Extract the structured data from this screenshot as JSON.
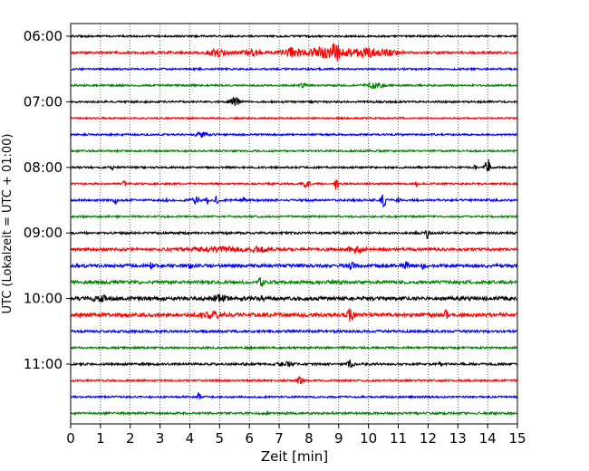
{
  "chart_data": {
    "type": "line",
    "xlabel": "Zeit  [min]",
    "ylabel": "UTC (Lokalzeit = UTC + 01:00)",
    "xlim": [
      0,
      15
    ],
    "xticks": [
      0,
      1,
      2,
      3,
      4,
      5,
      6,
      7,
      8,
      9,
      10,
      11,
      12,
      13,
      14,
      15
    ],
    "yticks": [
      "06:00",
      "07:00",
      "08:00",
      "09:00",
      "10:00",
      "11:00"
    ],
    "grid": "vertical-dotted",
    "colors": [
      "#000000",
      "#ff0000",
      "#0000ff",
      "#008000"
    ],
    "traces": [
      {
        "row": 0,
        "color": "#000000",
        "level": 1.0,
        "events": []
      },
      {
        "row": 1,
        "color": "#ff0000",
        "level": 1.3,
        "events": [
          [
            4.9,
            0.35,
            3.5
          ],
          [
            6.1,
            0.3,
            3.5
          ],
          [
            7.5,
            0.4,
            4.5
          ],
          [
            8.4,
            0.45,
            5.5
          ],
          [
            8.9,
            0.15,
            9
          ],
          [
            9.4,
            0.3,
            3.5
          ],
          [
            10.0,
            0.35,
            4.5
          ],
          [
            10.7,
            0.3,
            3
          ]
        ]
      },
      {
        "row": 2,
        "color": "#0000ff",
        "level": 1.0,
        "events": []
      },
      {
        "row": 3,
        "color": "#008000",
        "level": 1.0,
        "events": [
          [
            7.8,
            0.1,
            2
          ],
          [
            10.2,
            0.25,
            3.5
          ]
        ]
      },
      {
        "row": 4,
        "color": "#000000",
        "level": 1.0,
        "events": [
          [
            5.5,
            0.2,
            4
          ]
        ]
      },
      {
        "row": 5,
        "color": "#ff0000",
        "level": 0.9,
        "events": []
      },
      {
        "row": 6,
        "color": "#0000ff",
        "level": 1.0,
        "events": [
          [
            4.4,
            0.2,
            2.5
          ]
        ]
      },
      {
        "row": 7,
        "color": "#008000",
        "level": 1.0,
        "events": []
      },
      {
        "row": 8,
        "color": "#000000",
        "level": 1.0,
        "events": [
          [
            1.4,
            0.05,
            2
          ],
          [
            13.6,
            0.05,
            3
          ],
          [
            14.0,
            0.08,
            10
          ]
        ]
      },
      {
        "row": 9,
        "color": "#ff0000",
        "level": 1.0,
        "events": [
          [
            1.8,
            0.05,
            2.5
          ],
          [
            7.9,
            0.15,
            3
          ],
          [
            8.9,
            0.1,
            6
          ],
          [
            11.6,
            0.05,
            3
          ]
        ]
      },
      {
        "row": 10,
        "color": "#0000ff",
        "level": 1.2,
        "events": [
          [
            1.5,
            0.05,
            4
          ],
          [
            3.2,
            0.05,
            3
          ],
          [
            4.2,
            0.1,
            4
          ],
          [
            4.6,
            0.05,
            4
          ],
          [
            4.9,
            0.05,
            4
          ],
          [
            5.8,
            0.05,
            3
          ],
          [
            10.5,
            0.08,
            7
          ],
          [
            11.0,
            0.05,
            3
          ]
        ]
      },
      {
        "row": 11,
        "color": "#008000",
        "level": 1.0,
        "events": []
      },
      {
        "row": 12,
        "color": "#000000",
        "level": 1.2,
        "events": [
          [
            12.0,
            0.08,
            6
          ]
        ]
      },
      {
        "row": 13,
        "color": "#ff0000",
        "level": 1.5,
        "events": [
          [
            5.0,
            0.8,
            2.5
          ],
          [
            6.3,
            0.3,
            2
          ],
          [
            9.6,
            0.3,
            3
          ]
        ]
      },
      {
        "row": 14,
        "color": "#0000ff",
        "level": 1.8,
        "events": [
          [
            2.7,
            0.05,
            3
          ],
          [
            4.0,
            0.05,
            2.5
          ],
          [
            9.4,
            0.15,
            3
          ],
          [
            11.3,
            0.1,
            3
          ],
          [
            11.8,
            0.1,
            2.5
          ]
        ]
      },
      {
        "row": 15,
        "color": "#008000",
        "level": 1.7,
        "events": [
          [
            6.4,
            0.1,
            4
          ],
          [
            9.1,
            0.05,
            2.5
          ]
        ]
      },
      {
        "row": 16,
        "color": "#000000",
        "level": 2.0,
        "events": [
          [
            1.0,
            0.3,
            2
          ],
          [
            5.0,
            0.2,
            3
          ],
          [
            6.4,
            0.1,
            2.5
          ]
        ]
      },
      {
        "row": 17,
        "color": "#ff0000",
        "level": 2.0,
        "events": [
          [
            4.8,
            0.4,
            2.5
          ],
          [
            9.4,
            0.1,
            6
          ],
          [
            12.6,
            0.05,
            6.5
          ]
        ]
      },
      {
        "row": 18,
        "color": "#0000ff",
        "level": 1.3,
        "events": []
      },
      {
        "row": 19,
        "color": "#008000",
        "level": 1.1,
        "events": []
      },
      {
        "row": 20,
        "color": "#000000",
        "level": 1.2,
        "events": [
          [
            7.2,
            0.2,
            2.5
          ],
          [
            9.4,
            0.1,
            4
          ],
          [
            12.4,
            0.05,
            3
          ]
        ]
      },
      {
        "row": 21,
        "color": "#ff0000",
        "level": 1.0,
        "events": [
          [
            7.7,
            0.1,
            5
          ]
        ]
      },
      {
        "row": 22,
        "color": "#0000ff",
        "level": 1.0,
        "events": [
          [
            4.3,
            0.05,
            5
          ]
        ]
      },
      {
        "row": 23,
        "color": "#008000",
        "level": 1.2,
        "events": []
      }
    ]
  }
}
